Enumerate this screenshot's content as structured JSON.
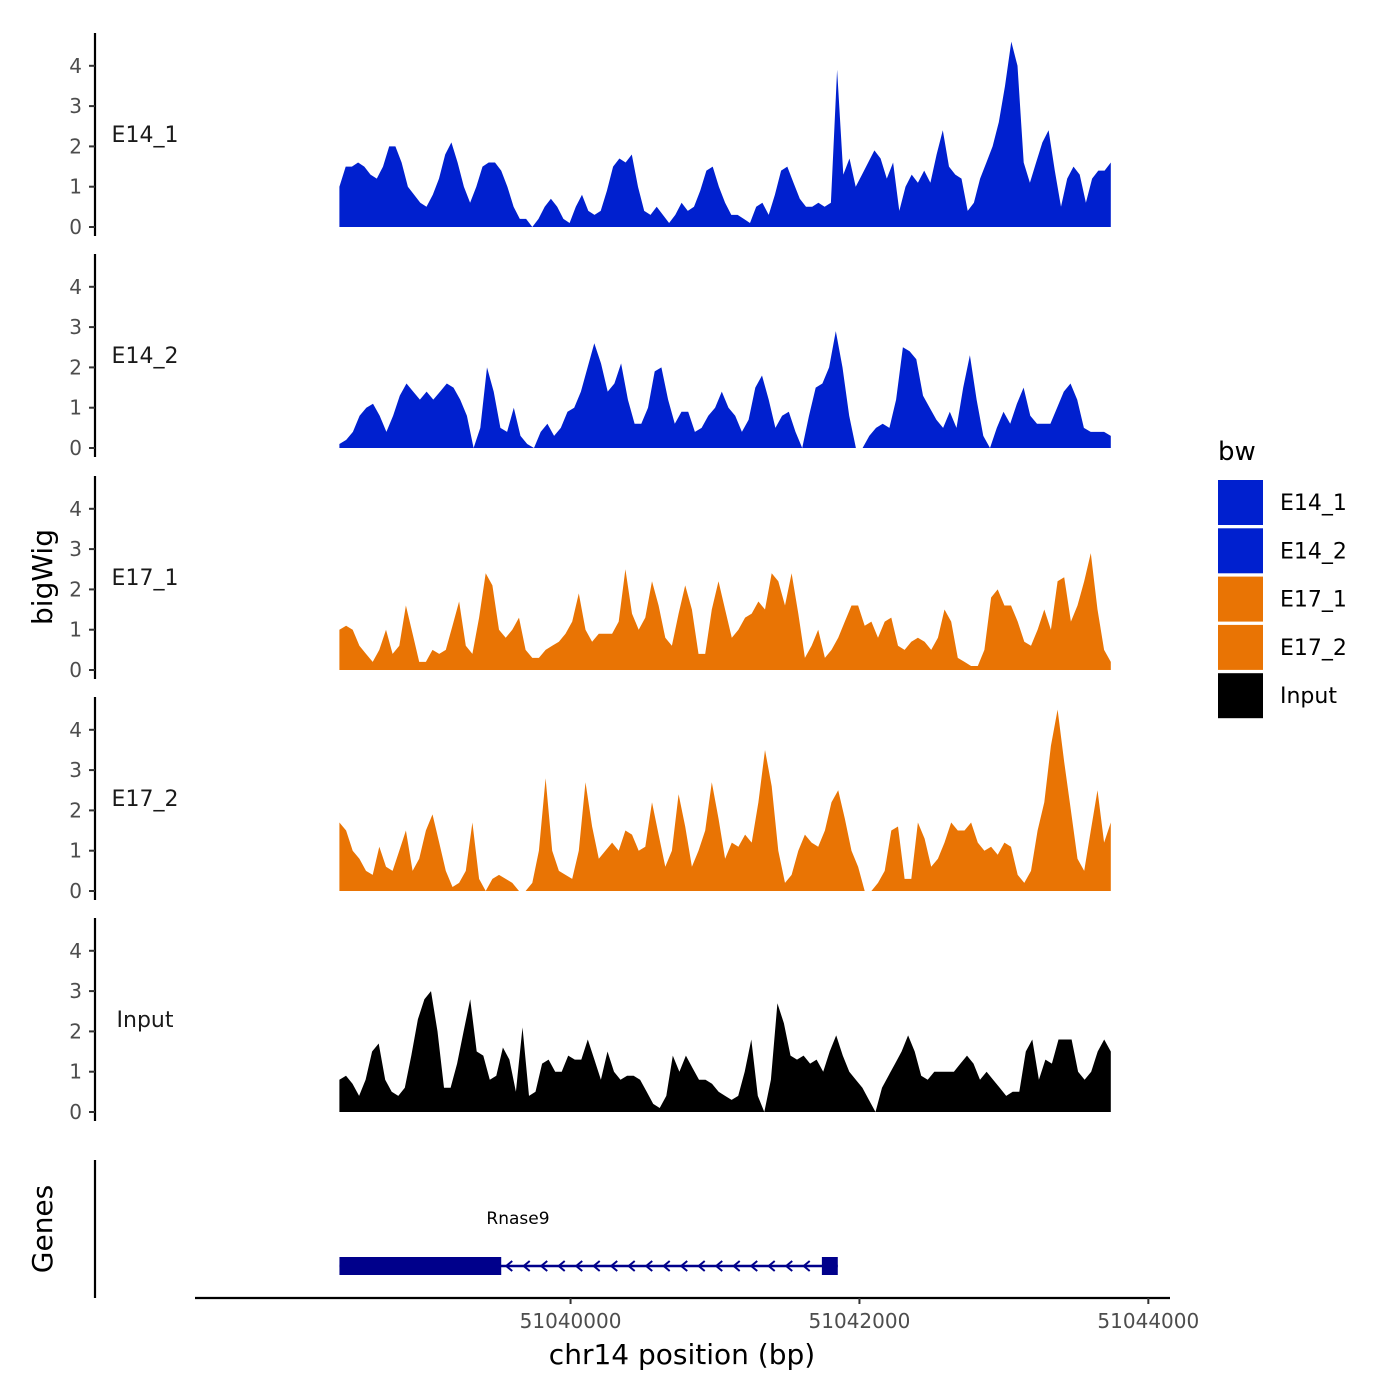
{
  "chart_data": {
    "type": "area",
    "ylabel": "bigWig",
    "xlabel": "chr14 position (bp)",
    "ylim": [
      0,
      4.8
    ],
    "yticks": [
      0,
      1,
      2,
      3,
      4
    ],
    "xlim": [
      51037400,
      51044150
    ],
    "xticks": [
      51040000,
      51042000,
      51044000
    ],
    "x_range": [
      51038400,
      51043740
    ],
    "legend": {
      "title": "bw",
      "placement": "right",
      "entries": [
        {
          "label": "E14_1",
          "color": "#0020CF"
        },
        {
          "label": "E14_2",
          "color": "#0020CF"
        },
        {
          "label": "E17_1",
          "color": "#E97404"
        },
        {
          "label": "E17_2",
          "color": "#E97404"
        },
        {
          "label": "Input",
          "color": "#000000"
        }
      ]
    },
    "series": [
      {
        "name": "E14_1",
        "color": "#0020CF",
        "values": [
          1.0,
          1.5,
          1.5,
          1.6,
          1.5,
          1.3,
          1.2,
          1.5,
          2.0,
          2.0,
          1.6,
          1.0,
          0.8,
          0.6,
          0.5,
          0.8,
          1.2,
          1.8,
          2.1,
          1.6,
          1.0,
          0.6,
          1.0,
          1.5,
          1.6,
          1.6,
          1.4,
          1.0,
          0.5,
          0.2,
          0.2,
          0.0,
          0.2,
          0.5,
          0.7,
          0.5,
          0.2,
          0.1,
          0.5,
          0.8,
          0.4,
          0.3,
          0.4,
          0.9,
          1.5,
          1.7,
          1.6,
          1.8,
          1.0,
          0.4,
          0.3,
          0.5,
          0.3,
          0.1,
          0.3,
          0.6,
          0.4,
          0.5,
          0.9,
          1.4,
          1.5,
          1.0,
          0.6,
          0.3,
          0.3,
          0.2,
          0.1,
          0.5,
          0.6,
          0.3,
          0.8,
          1.4,
          1.5,
          1.1,
          0.7,
          0.5,
          0.5,
          0.6,
          0.5,
          0.6,
          3.9,
          1.3,
          1.7,
          1.0,
          1.3,
          1.6,
          1.9,
          1.7,
          1.2,
          1.6,
          0.4,
          1.0,
          1.3,
          1.1,
          1.4,
          1.1,
          1.8,
          2.4,
          1.5,
          1.3,
          1.2,
          0.4,
          0.6,
          1.2,
          1.6,
          2.0,
          2.6,
          3.5,
          4.6,
          4.0,
          1.6,
          1.1,
          1.6,
          2.1,
          2.4,
          1.4,
          0.5,
          1.2,
          1.5,
          1.3,
          0.6,
          1.2,
          1.4,
          1.4,
          1.6
        ],
        "points": []
      },
      {
        "name": "E14_2",
        "color": "#0020CF",
        "values": [
          0.1,
          0.2,
          0.4,
          0.8,
          1.0,
          1.1,
          0.8,
          0.4,
          0.8,
          1.3,
          1.6,
          1.4,
          1.2,
          1.4,
          1.2,
          1.4,
          1.6,
          1.5,
          1.2,
          0.8,
          0.0,
          0.5,
          2.0,
          1.4,
          0.5,
          0.4,
          1.0,
          0.3,
          0.1,
          0.0,
          0.4,
          0.6,
          0.3,
          0.5,
          0.9,
          1.0,
          1.4,
          2.0,
          2.6,
          2.1,
          1.4,
          1.6,
          2.1,
          1.2,
          0.6,
          0.6,
          1.0,
          1.9,
          2.0,
          1.2,
          0.6,
          0.9,
          0.9,
          0.4,
          0.5,
          0.8,
          1.0,
          1.4,
          1.0,
          0.8,
          0.4,
          0.7,
          1.5,
          1.8,
          1.2,
          0.5,
          0.8,
          0.9,
          0.4,
          0.0,
          0.8,
          1.5,
          1.6,
          2.0,
          2.9,
          2.0,
          0.8,
          0.0,
          0.0,
          0.3,
          0.5,
          0.6,
          0.5,
          1.2,
          2.5,
          2.4,
          2.2,
          1.3,
          1.0,
          0.7,
          0.5,
          0.9,
          0.5,
          1.5,
          2.3,
          1.2,
          0.3,
          0.0,
          0.5,
          0.9,
          0.6,
          1.1,
          1.5,
          0.8,
          0.6,
          0.6,
          0.6,
          1.0,
          1.4,
          1.6,
          1.2,
          0.5,
          0.4,
          0.4,
          0.4,
          0.3
        ],
        "points": []
      },
      {
        "name": "E17_1",
        "color": "#E97404",
        "values": [
          1.0,
          1.1,
          1.0,
          0.6,
          0.4,
          0.2,
          0.5,
          1.0,
          0.4,
          0.6,
          1.6,
          0.9,
          0.2,
          0.2,
          0.5,
          0.4,
          0.5,
          1.1,
          1.7,
          0.6,
          0.4,
          1.3,
          2.4,
          2.1,
          1.0,
          0.8,
          1.0,
          1.3,
          0.5,
          0.3,
          0.3,
          0.5,
          0.6,
          0.7,
          0.9,
          1.2,
          1.9,
          1.0,
          0.7,
          0.9,
          0.9,
          0.9,
          1.2,
          2.5,
          1.4,
          1.0,
          1.3,
          2.2,
          1.6,
          0.8,
          0.6,
          1.4,
          2.1,
          1.5,
          0.4,
          0.4,
          1.5,
          2.2,
          1.5,
          0.8,
          1.0,
          1.3,
          1.4,
          1.7,
          1.5,
          2.4,
          2.2,
          1.6,
          2.4,
          1.4,
          0.3,
          0.6,
          1.0,
          0.3,
          0.5,
          0.8,
          1.2,
          1.6,
          1.6,
          1.1,
          1.2,
          0.8,
          1.2,
          1.3,
          0.6,
          0.5,
          0.7,
          0.8,
          0.7,
          0.5,
          0.8,
          1.5,
          1.2,
          0.3,
          0.2,
          0.1,
          0.1,
          0.5,
          1.8,
          2.0,
          1.6,
          1.6,
          1.2,
          0.7,
          0.6,
          1.0,
          1.5,
          1.0,
          2.2,
          2.3,
          1.2,
          1.6,
          2.2,
          2.9,
          1.5,
          0.5,
          0.2
        ],
        "points": []
      },
      {
        "name": "E17_2",
        "color": "#E97404",
        "values": [
          1.7,
          1.5,
          1.0,
          0.8,
          0.5,
          0.4,
          1.1,
          0.6,
          0.5,
          1.0,
          1.5,
          0.5,
          0.8,
          1.5,
          1.9,
          1.2,
          0.5,
          0.1,
          0.2,
          0.5,
          1.7,
          0.3,
          0.0,
          0.3,
          0.4,
          0.3,
          0.2,
          0.0,
          0.0,
          0.2,
          1.0,
          2.8,
          1.0,
          0.5,
          0.4,
          0.3,
          1.0,
          2.7,
          1.6,
          0.8,
          1.0,
          1.2,
          1.0,
          1.5,
          1.4,
          1.0,
          1.1,
          2.2,
          1.4,
          0.6,
          1.0,
          2.4,
          1.6,
          0.6,
          1.0,
          1.5,
          2.7,
          1.8,
          0.8,
          1.2,
          1.1,
          1.4,
          1.2,
          2.2,
          3.5,
          2.6,
          1.0,
          0.2,
          0.4,
          1.0,
          1.4,
          1.2,
          1.1,
          1.5,
          2.2,
          2.5,
          1.8,
          1.0,
          0.6,
          0.0,
          0.0,
          0.2,
          0.5,
          1.5,
          1.6,
          0.3,
          0.3,
          1.7,
          1.3,
          0.6,
          0.8,
          1.2,
          1.7,
          1.5,
          1.5,
          1.7,
          1.2,
          1.0,
          1.1,
          0.9,
          1.2,
          1.1,
          0.4,
          0.2,
          0.5,
          1.5,
          2.2,
          3.6,
          4.5,
          3.2,
          2.0,
          0.8,
          0.5,
          1.5,
          2.5,
          1.2,
          1.7
        ],
        "points": []
      },
      {
        "name": "Input",
        "color": "#000000",
        "values": [
          0.8,
          0.9,
          0.7,
          0.4,
          0.8,
          1.5,
          1.7,
          0.8,
          0.5,
          0.4,
          0.6,
          1.4,
          2.3,
          2.8,
          3.0,
          2.0,
          0.6,
          0.6,
          1.2,
          2.0,
          2.8,
          1.5,
          1.4,
          0.8,
          0.9,
          1.6,
          1.3,
          0.5,
          2.1,
          0.4,
          0.5,
          1.2,
          1.3,
          1.0,
          1.0,
          1.4,
          1.3,
          1.3,
          1.8,
          1.3,
          0.8,
          1.5,
          1.0,
          0.8,
          0.9,
          0.9,
          0.8,
          0.5,
          0.2,
          0.1,
          0.4,
          1.4,
          1.0,
          1.4,
          1.1,
          0.8,
          0.8,
          0.7,
          0.5,
          0.4,
          0.3,
          0.4,
          1.0,
          1.8,
          0.4,
          0.0,
          0.8,
          2.7,
          2.2,
          1.4,
          1.3,
          1.4,
          1.2,
          1.3,
          1.0,
          1.5,
          1.9,
          1.4,
          1.0,
          0.8,
          0.6,
          0.3,
          0.0,
          0.6,
          0.9,
          1.2,
          1.5,
          1.9,
          1.5,
          0.9,
          0.8,
          1.0,
          1.0,
          1.0,
          1.0,
          1.2,
          1.4,
          1.2,
          0.8,
          1.0,
          0.8,
          0.6,
          0.4,
          0.5,
          0.5,
          1.5,
          1.8,
          0.8,
          1.3,
          1.2,
          1.8,
          1.8,
          1.8,
          1.0,
          0.8,
          1.0,
          1.5,
          1.8,
          1.5
        ],
        "points": []
      }
    ],
    "genes": {
      "title": "Genes",
      "items": [
        {
          "name": "Rnase9",
          "start": 51038400,
          "end": 51041850,
          "strand": "-",
          "exons": [
            [
              51038400,
              51039520
            ],
            [
              51041740,
              51041850
            ]
          ],
          "color": "#00008B"
        }
      ]
    }
  }
}
